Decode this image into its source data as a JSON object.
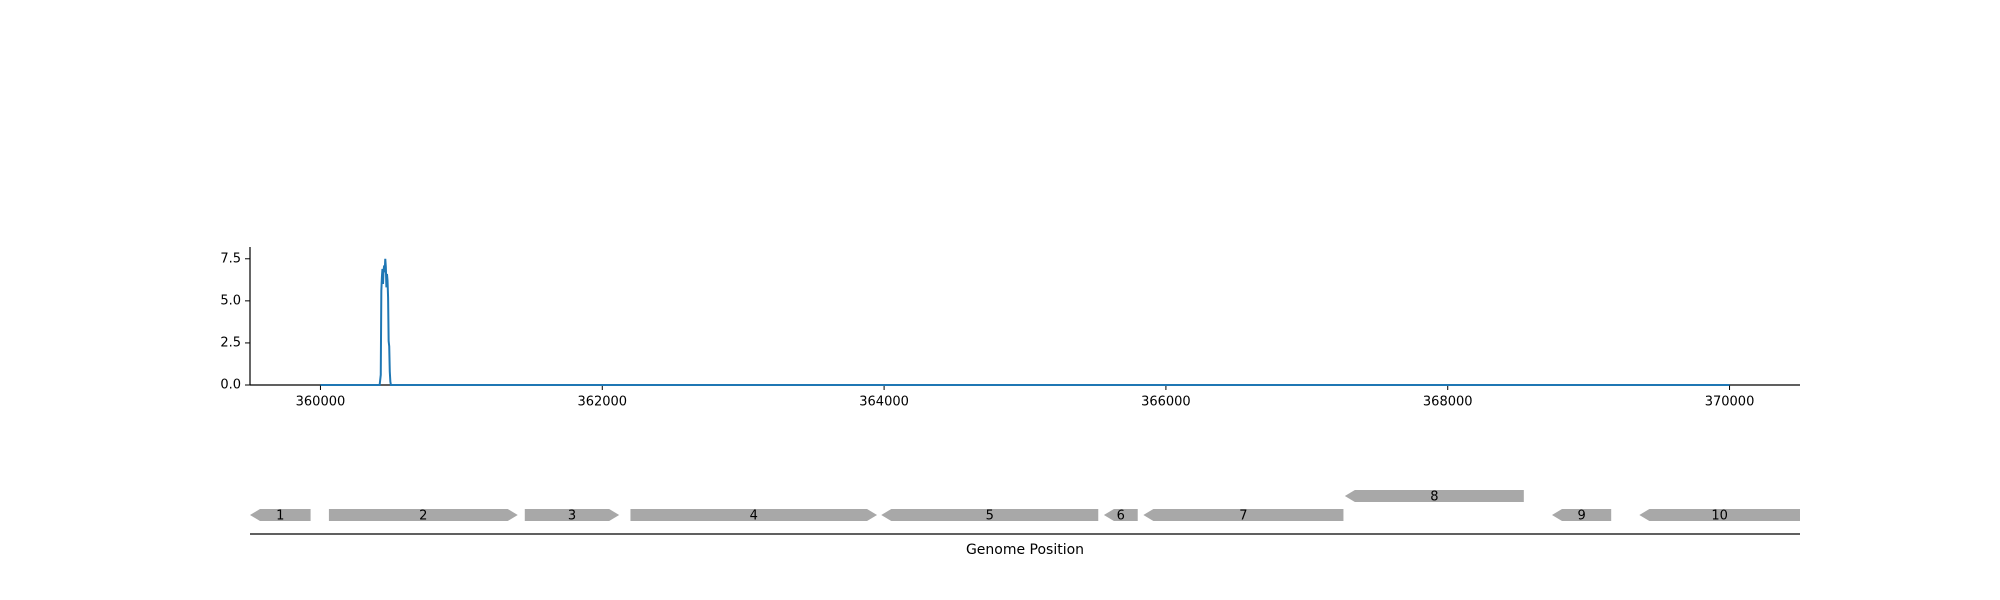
{
  "chart_data": [
    {
      "type": "line",
      "title": "",
      "xlabel": "",
      "ylabel": "",
      "xlim": [
        359500,
        370500
      ],
      "ylim": [
        0,
        8.2
      ],
      "x_ticks": [
        360000,
        362000,
        364000,
        366000,
        368000,
        370000
      ],
      "x_tick_labels": [
        "360000",
        "362000",
        "364000",
        "366000",
        "368000",
        "370000"
      ],
      "y_ticks": [
        0,
        2.5,
        5,
        7.5
      ],
      "y_tick_labels": [
        "0.0",
        "2.5",
        "5.0",
        "7.5"
      ],
      "grid": false,
      "line_color": "#1f77b4",
      "series": [
        {
          "points": [
            [
              360000,
              0
            ],
            [
              360420,
              0
            ],
            [
              360428,
              0.6
            ],
            [
              360432,
              5.6
            ],
            [
              360436,
              6.4
            ],
            [
              360440,
              6.9
            ],
            [
              360444,
              6.0
            ],
            [
              360448,
              6.8
            ],
            [
              360452,
              7.1
            ],
            [
              360456,
              6.7
            ],
            [
              360460,
              7.5
            ],
            [
              360464,
              7.0
            ],
            [
              360468,
              5.8
            ],
            [
              360472,
              6.6
            ],
            [
              360476,
              6.2
            ],
            [
              360480,
              5.2
            ],
            [
              360484,
              2.6
            ],
            [
              360488,
              2.3
            ],
            [
              360492,
              0.8
            ],
            [
              360496,
              0.2
            ],
            [
              360500,
              0
            ],
            [
              370000,
              0
            ]
          ]
        }
      ]
    },
    {
      "type": "gene-track",
      "xlabel": "Genome Position",
      "bar_color": "#a8a8a8",
      "genes": [
        {
          "label": "1",
          "start": 359500,
          "end": 359930,
          "strand": "-",
          "row": 0
        },
        {
          "label": "2",
          "start": 360060,
          "end": 361400,
          "strand": "+",
          "row": 0
        },
        {
          "label": "3",
          "start": 361450,
          "end": 362120,
          "strand": "+",
          "row": 0
        },
        {
          "label": "4",
          "start": 362200,
          "end": 363950,
          "strand": "+",
          "row": 0
        },
        {
          "label": "5",
          "start": 363980,
          "end": 365520,
          "strand": "-",
          "row": 0
        },
        {
          "label": "6",
          "start": 365560,
          "end": 365800,
          "strand": "-",
          "row": 0
        },
        {
          "label": "7",
          "start": 365840,
          "end": 367260,
          "strand": "-",
          "row": 0
        },
        {
          "label": "8",
          "start": 367270,
          "end": 368540,
          "strand": "-",
          "row": 1
        },
        {
          "label": "9",
          "start": 368740,
          "end": 369160,
          "strand": "-",
          "row": 0
        },
        {
          "label": "10",
          "start": 369360,
          "end": 370500,
          "strand": "-",
          "row": 0
        }
      ]
    }
  ]
}
